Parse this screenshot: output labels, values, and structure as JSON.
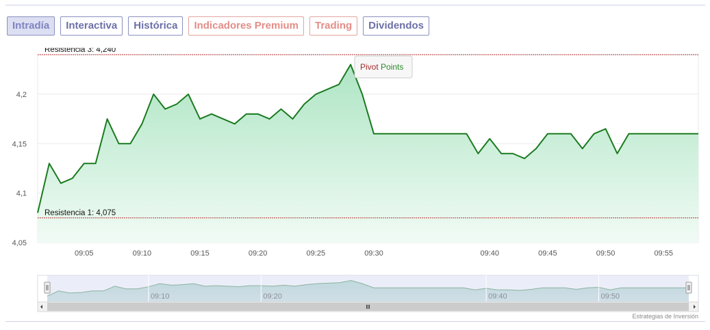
{
  "tabs": [
    {
      "label": "Intradía",
      "active": true,
      "premium": false
    },
    {
      "label": "Interactiva",
      "active": false,
      "premium": false
    },
    {
      "label": "Histórica",
      "active": false,
      "premium": false
    },
    {
      "label": "Indicadores Premium",
      "active": false,
      "premium": true
    },
    {
      "label": "Trading",
      "active": false,
      "premium": true
    },
    {
      "label": "Dividendos",
      "active": false,
      "premium": false
    }
  ],
  "credit": "Estrategias de Inversión",
  "tooltip": {
    "part1": "Pivot",
    "part2": "Points"
  },
  "colors": {
    "line": "#1a7a1f",
    "fill_top": "#aee5c4",
    "fill_bottom": "#f1fbf5",
    "resistance": "#b03030",
    "navigator_fill": "#c5ddd9",
    "navigator_mask": "#dbe0f2",
    "tab_border": "#8a90c0",
    "premium_text": "#e38d86"
  },
  "chart_data": {
    "type": "area",
    "title": "",
    "xlabel": "",
    "ylabel": "",
    "ylim": [
      4.05,
      4.24
    ],
    "yticks": [
      4.05,
      4.1,
      4.15,
      4.2
    ],
    "ytick_labels": [
      "4,05",
      "4,1",
      "4,15",
      "4,2"
    ],
    "xlim": [
      "09:01",
      "09:58"
    ],
    "xticks": [
      "09:05",
      "09:10",
      "09:15",
      "09:20",
      "09:25",
      "09:30",
      "09:40",
      "09:45",
      "09:50",
      "09:55"
    ],
    "navigator_ticks": [
      "09:10",
      "09:20",
      "09:40",
      "09:50"
    ],
    "series": [
      {
        "x": [
          "09:01",
          "09:02",
          "09:03",
          "09:04",
          "09:05",
          "09:06",
          "09:07",
          "09:08",
          "09:09",
          "09:10",
          "09:11",
          "09:12",
          "09:13",
          "09:14",
          "09:15",
          "09:16",
          "09:17",
          "09:18",
          "09:19",
          "09:20",
          "09:21",
          "09:22",
          "09:23",
          "09:24",
          "09:25",
          "09:26",
          "09:27",
          "09:28",
          "09:29",
          "09:30",
          "09:31",
          "09:32",
          "09:37",
          "09:38",
          "09:39",
          "09:40",
          "09:41",
          "09:42",
          "09:43",
          "09:44",
          "09:45",
          "09:46",
          "09:47",
          "09:48",
          "09:49",
          "09:50",
          "09:51",
          "09:52",
          "09:53",
          "09:54",
          "09:55",
          "09:56",
          "09:57",
          "09:58"
        ],
        "values": [
          4.08,
          4.13,
          4.11,
          4.115,
          4.13,
          4.13,
          4.175,
          4.15,
          4.15,
          4.17,
          4.2,
          4.185,
          4.19,
          4.2,
          4.175,
          4.18,
          4.175,
          4.17,
          4.18,
          4.18,
          4.175,
          4.185,
          4.175,
          4.19,
          4.2,
          4.205,
          4.21,
          4.23,
          4.2,
          4.16,
          4.16,
          4.16,
          4.16,
          4.16,
          4.14,
          4.155,
          4.14,
          4.14,
          4.135,
          4.145,
          4.16,
          4.16,
          4.16,
          4.145,
          4.16,
          4.165,
          4.14,
          4.16,
          4.16,
          4.16,
          4.16,
          4.16,
          4.16,
          4.16
        ]
      }
    ],
    "annotations": [
      {
        "label": "Resistencia 3: 4,240",
        "value": 4.24
      },
      {
        "label": "Resistencia 1: 4,075",
        "value": 4.075
      }
    ],
    "grid": true,
    "legend": "none"
  }
}
